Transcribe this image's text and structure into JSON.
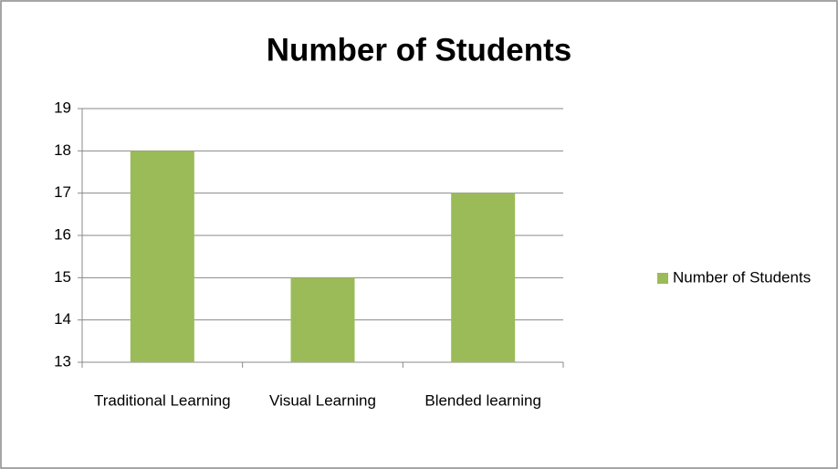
{
  "chart_data": {
    "type": "bar",
    "title": "Number of Students",
    "categories": [
      "Traditional Learning",
      "Visual Learning",
      "Blended learning"
    ],
    "series": [
      {
        "name": "Number of Students",
        "color": "#9bbb59",
        "values": [
          18,
          15,
          17
        ]
      }
    ],
    "ylim": [
      13,
      19
    ],
    "yticks": [
      13,
      14,
      15,
      16,
      17,
      18,
      19
    ],
    "grid": true,
    "legend": "right"
  }
}
